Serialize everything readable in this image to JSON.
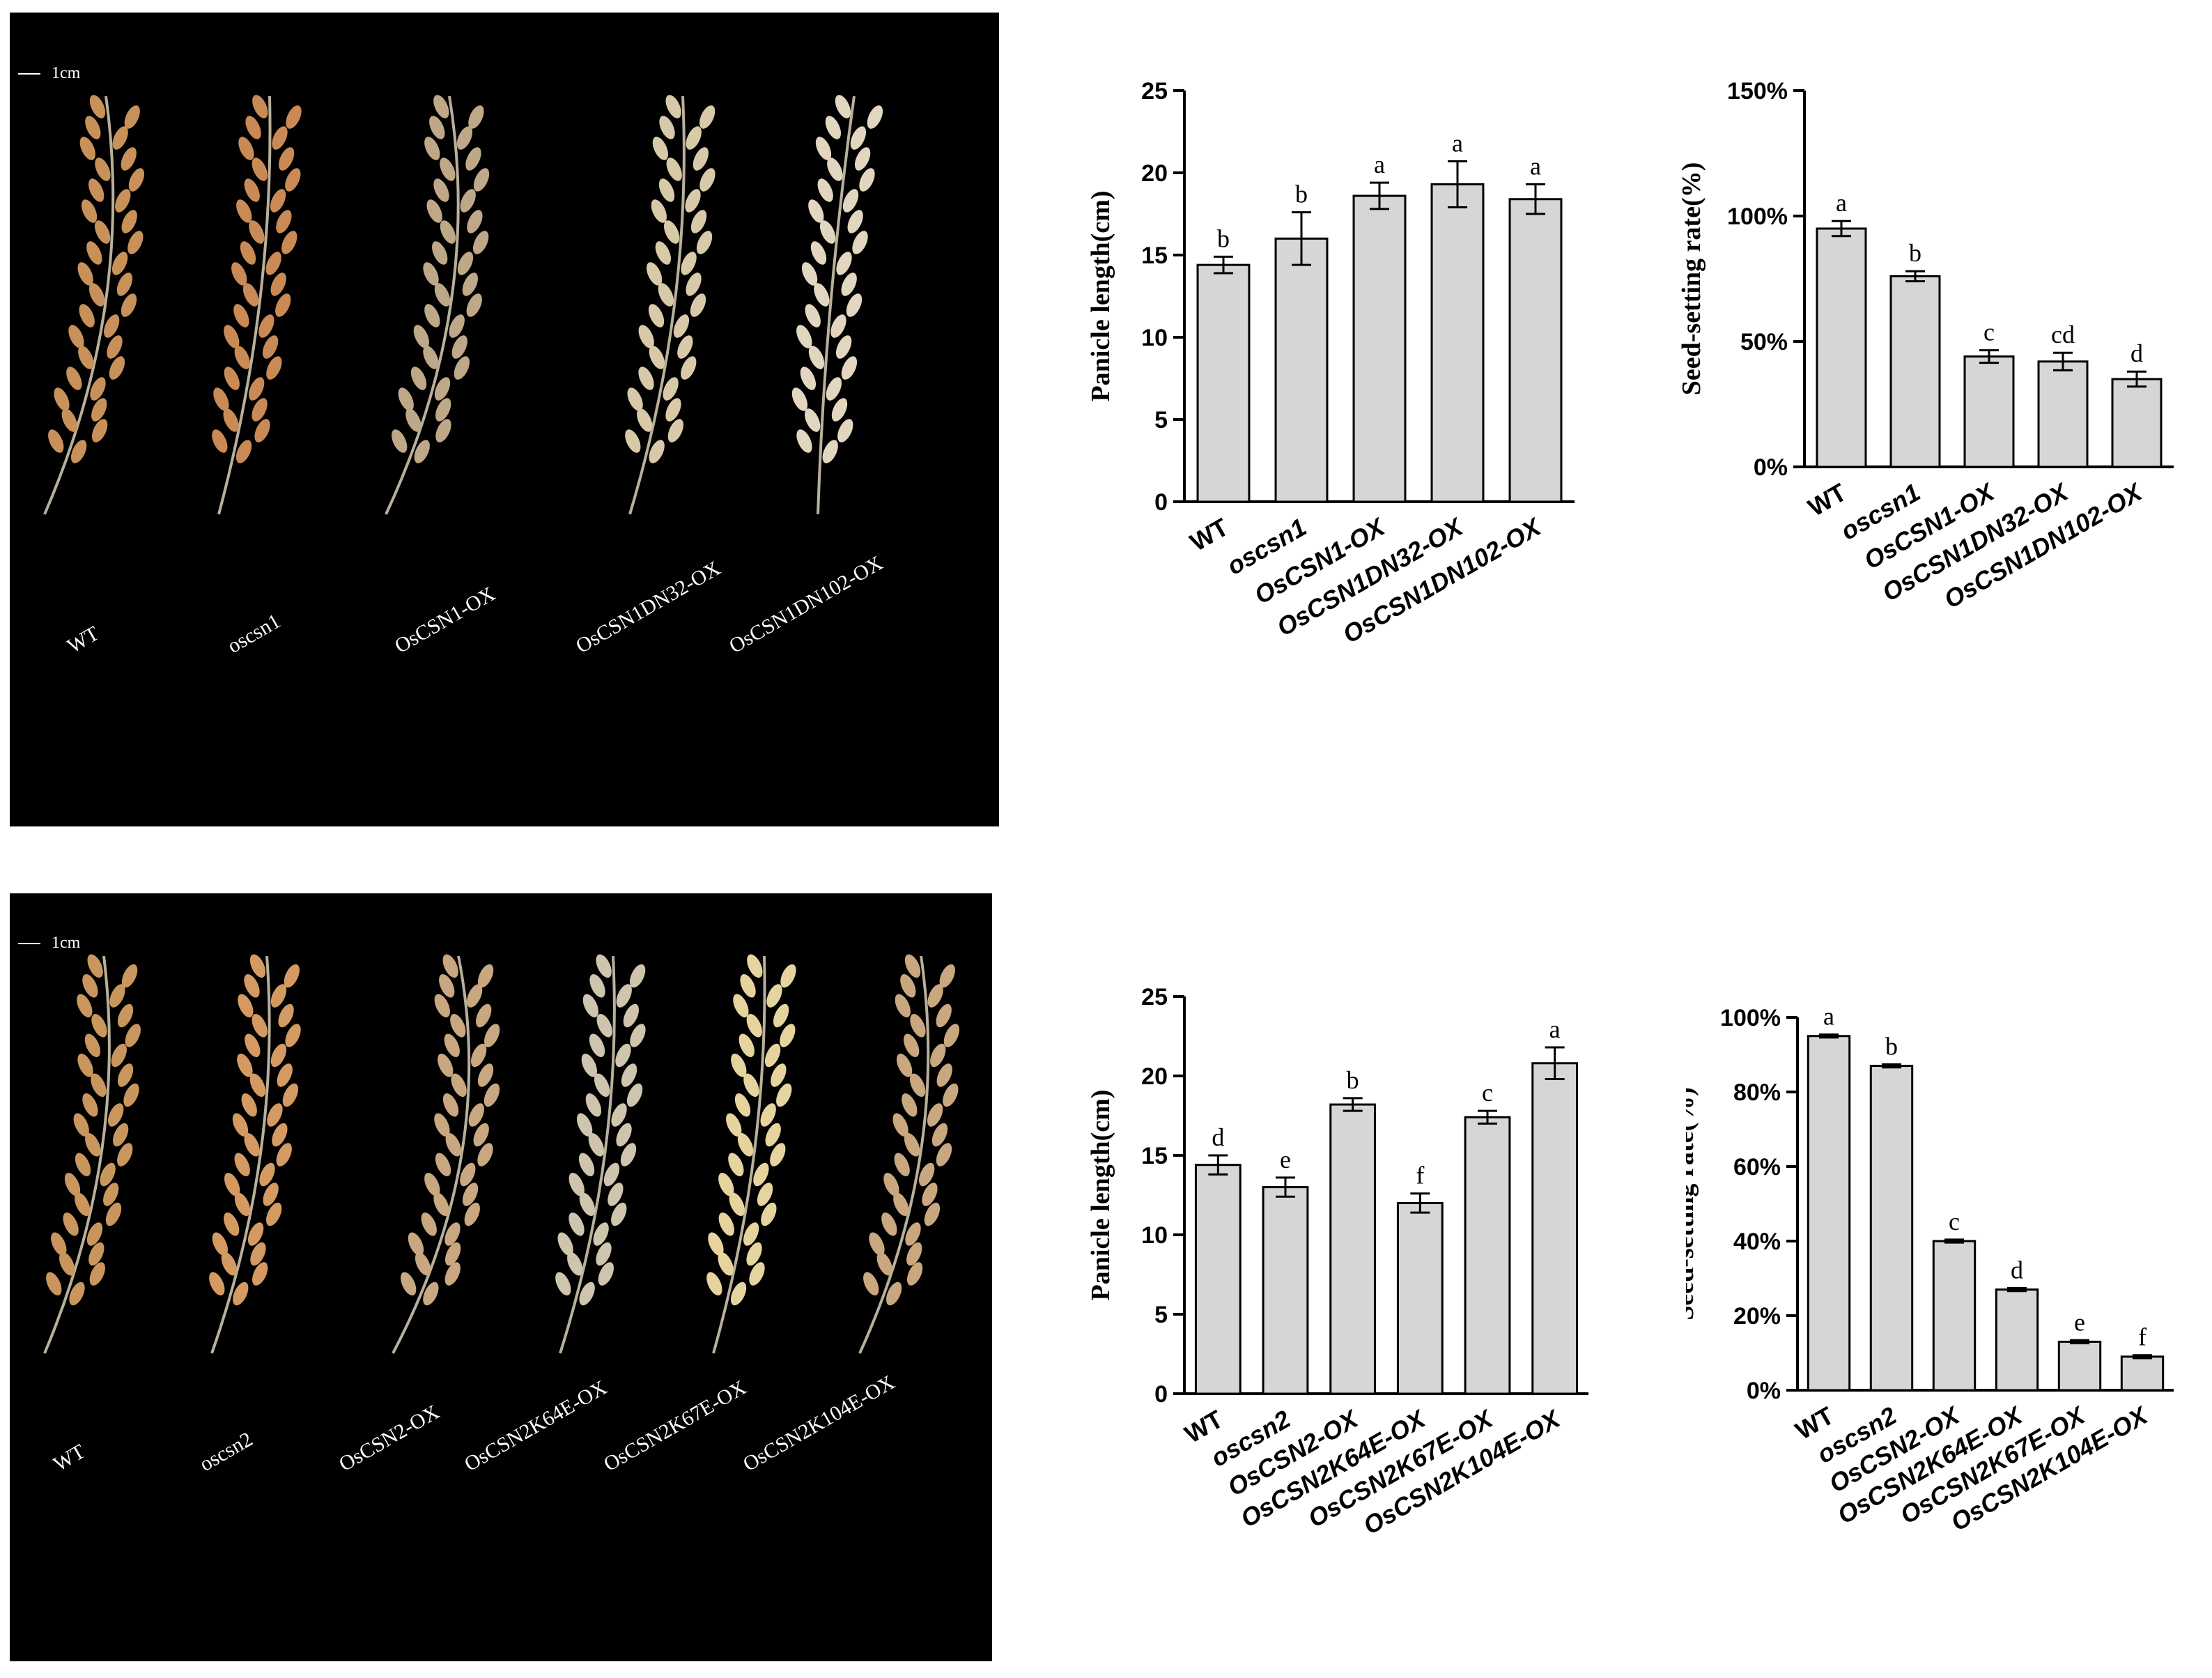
{
  "photos": [
    {
      "scale_label": "1cm",
      "labels": [
        "WT",
        "oscsn1",
        "OsCSN1-OX",
        "OsCSN1DN32-OX",
        "OsCSN1DN102-OX"
      ],
      "panicle_colors": [
        "#c8915a",
        "#c98a55",
        "#bfa888",
        "#d8c9a8",
        "#e2d6c0"
      ]
    },
    {
      "scale_label": "1cm",
      "labels": [
        "WT",
        "oscsn2",
        "OsCSN2-OX",
        "OsCSN2K64E-OX",
        "OsCSN2K67E-OX",
        "OsCSN2K104E-OX"
      ],
      "panicle_colors": [
        "#c9965e",
        "#d49a62",
        "#c8a781",
        "#cfc4ad",
        "#e6d49e",
        "#c9a77f"
      ]
    }
  ],
  "chart_data": [
    {
      "type": "bar",
      "categories": [
        "WT",
        "oscsn1",
        "OsCSN1-OX",
        "OsCSN1DN32-OX",
        "OsCSN1DN102-OX"
      ],
      "values": [
        14.4,
        16.0,
        18.6,
        19.3,
        18.4
      ],
      "errors": [
        0.5,
        1.6,
        0.8,
        1.4,
        0.9
      ],
      "significance": [
        "b",
        "b",
        "a",
        "a",
        "a"
      ],
      "ylabel": "Panicle length(cm)",
      "ylim": [
        0,
        25
      ],
      "yticks": [
        "0",
        "5",
        "10",
        "15",
        "20",
        "25"
      ],
      "bar_color": "#d6d6d6"
    },
    {
      "type": "bar",
      "categories": [
        "WT",
        "oscsn1",
        "OsCSN1-OX",
        "OsCSN1DN32-OX",
        "OsCSN1DN102-OX"
      ],
      "values": [
        95,
        76,
        44,
        42,
        35
      ],
      "errors": [
        3,
        2,
        2.5,
        3.5,
        3
      ],
      "significance": [
        "a",
        "b",
        "c",
        "cd",
        "d"
      ],
      "ylabel": "Seed-setting  rate(%)",
      "ylim": [
        0,
        150
      ],
      "yticks": [
        "0%",
        "50%",
        "100%",
        "150%"
      ],
      "bar_color": "#d6d6d6"
    },
    {
      "type": "bar",
      "categories": [
        "WT",
        "oscsn2",
        "OsCSN2-OX",
        "OsCSN2K64E-OX",
        "OsCSN2K67E-OX",
        "OsCSN2K104E-OX"
      ],
      "values": [
        14.4,
        13.0,
        18.2,
        12.0,
        17.4,
        20.8
      ],
      "errors": [
        0.6,
        0.6,
        0.4,
        0.6,
        0.4,
        1.0
      ],
      "significance": [
        "d",
        "e",
        "b",
        "f",
        "c",
        "a"
      ],
      "ylabel": "Panicle length(cm)",
      "ylim": [
        0,
        25
      ],
      "yticks": [
        "0",
        "5",
        "10",
        "15",
        "20",
        "25"
      ],
      "bar_color": "#d6d6d6"
    },
    {
      "type": "bar",
      "categories": [
        "WT",
        "oscsn2",
        "OsCSN2-OX",
        "OsCSN2K64E-OX",
        "OsCSN2K67E-OX",
        "OsCSN2K104E-OX"
      ],
      "values": [
        95,
        87,
        40,
        27,
        13,
        9
      ],
      "errors": [
        0.4,
        0.4,
        0.4,
        0.4,
        0.4,
        0.4
      ],
      "significance": [
        "a",
        "b",
        "c",
        "d",
        "e",
        "f"
      ],
      "ylabel": "Seed-setting  rate(%)",
      "ylim": [
        0,
        100
      ],
      "yticks": [
        "0%",
        "20%",
        "40%",
        "60%",
        "80%",
        "100%"
      ],
      "bar_color": "#d6d6d6"
    }
  ]
}
